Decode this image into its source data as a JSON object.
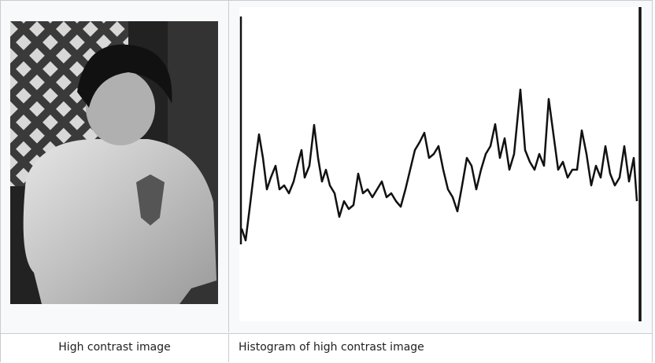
{
  "table": {
    "captions": [
      "High contrast image",
      "Histogram of high contrast image"
    ]
  }
}
